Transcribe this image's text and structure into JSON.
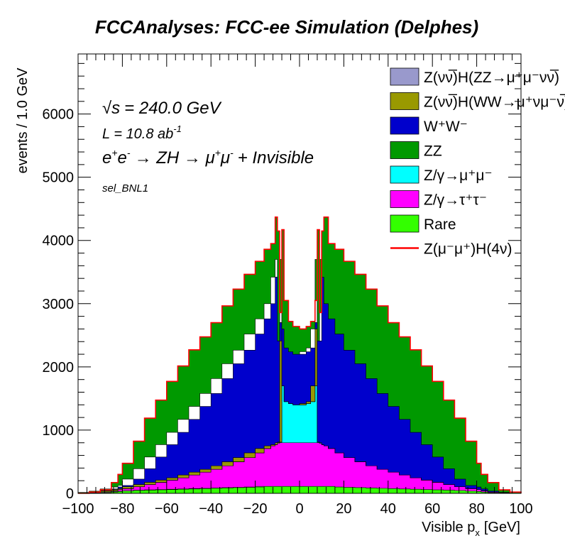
{
  "chart_data": {
    "type": "area",
    "title": "FCCAnalyses: FCC-ee Simulation (Delphes)",
    "xlabel": "Visible p",
    "xlabel_sub": "x",
    "xlabel_unit": "[GeV]",
    "ylabel": "events / 1.0 GeV",
    "xlim": [
      -100,
      100
    ],
    "ylim": [
      0,
      6950
    ],
    "log_scale": false,
    "stacked": true,
    "x_ticks": [
      "−100",
      "−80",
      "−60",
      "−40",
      "−20",
      "0",
      "20",
      "40",
      "60",
      "80",
      "100"
    ],
    "y_ticks": [
      "0",
      "1000",
      "2000",
      "3000",
      "4000",
      "5000",
      "6000"
    ],
    "annotations": {
      "sqrt_s": "= 240.0 GeV",
      "lumi_prefix": "L = 10.8 ab",
      "lumi_exp": "-1",
      "process_a": "e",
      "process_b": "e",
      "process_c": "→ ZH → μ",
      "process_d": "μ",
      "process_e": "+ Invisible",
      "selection": "sel_BNL1",
      "sqrt_sym": "√s"
    },
    "legend": [
      {
        "text": "Z(νν̅)H(ZZ→μ⁺μ⁻νν̅)",
        "color": "#9999cc",
        "kind": "box"
      },
      {
        "text": "Z(νν̅)H(WW→μ⁺νμ⁻ν̅)",
        "color": "#999900",
        "kind": "box"
      },
      {
        "text": "W⁺W⁻",
        "color": "#0000cc",
        "kind": "box"
      },
      {
        "text": "ZZ",
        "color": "#009900",
        "kind": "box"
      },
      {
        "text": "Z/γ→μ⁺μ⁻",
        "color": "#00ffff",
        "kind": "box"
      },
      {
        "text": "Z/γ→τ⁺τ⁻",
        "color": "#ff00ff",
        "kind": "box"
      },
      {
        "text": "Rare",
        "color": "#33ff00",
        "kind": "box"
      },
      {
        "text": "Z(μ⁻μ⁺)H(4ν)",
        "color": "#ff0000",
        "kind": "line"
      }
    ],
    "x": [
      -100,
      -95,
      -90,
      -85,
      -82,
      -80,
      -75,
      -70,
      -65,
      -60,
      -55,
      -50,
      -45,
      -40,
      -35,
      -30,
      -25,
      -20,
      -16,
      -13,
      -11,
      -10,
      -9,
      -8,
      -7,
      -5,
      -3,
      0,
      3,
      5,
      7,
      8,
      9,
      10,
      11,
      13,
      16,
      20,
      25,
      30,
      35,
      40,
      45,
      50,
      55,
      60,
      65,
      70,
      75,
      80,
      82,
      85,
      90,
      95,
      100
    ],
    "series": [
      {
        "name": "Rare",
        "color": "#33ff00",
        "values": [
          0,
          5,
          10,
          20,
          30,
          35,
          45,
          50,
          55,
          60,
          65,
          70,
          75,
          80,
          85,
          90,
          95,
          100,
          110,
          110,
          110,
          110,
          110,
          110,
          110,
          110,
          110,
          110,
          110,
          110,
          110,
          110,
          110,
          110,
          110,
          110,
          110,
          100,
          95,
          90,
          85,
          80,
          75,
          70,
          65,
          60,
          55,
          50,
          45,
          35,
          30,
          20,
          10,
          5,
          0
        ]
      },
      {
        "name": "Z/γ→τ⁺τ⁻",
        "color": "#ff00ff",
        "values": [
          0,
          5,
          10,
          20,
          30,
          40,
          60,
          90,
          120,
          150,
          180,
          220,
          260,
          300,
          350,
          410,
          470,
          540,
          600,
          640,
          660,
          680,
          690,
          690,
          690,
          690,
          690,
          690,
          690,
          690,
          690,
          690,
          690,
          680,
          660,
          640,
          600,
          540,
          470,
          410,
          350,
          300,
          260,
          220,
          180,
          150,
          120,
          90,
          60,
          40,
          30,
          20,
          10,
          5,
          0
        ]
      },
      {
        "name": "Z/γ→μ⁺μ⁻",
        "color": "#00ffff",
        "values": [
          0,
          0,
          0,
          0,
          0,
          0,
          0,
          0,
          0,
          0,
          0,
          0,
          0,
          0,
          0,
          0,
          0,
          0,
          0,
          0,
          0,
          10,
          10,
          1900,
          900,
          650,
          620,
          600,
          620,
          650,
          900,
          1900,
          10,
          10,
          0,
          0,
          0,
          0,
          0,
          0,
          0,
          0,
          0,
          0,
          0,
          0,
          0,
          0,
          0,
          0,
          0,
          0,
          0,
          0,
          0
        ]
      },
      {
        "name": "Z(νν̅)H(ZZ→μ⁺μ⁻νν̅)",
        "color": "#9999cc",
        "values": [
          0,
          0,
          0,
          0,
          0,
          0,
          0,
          0,
          0,
          0,
          0,
          0,
          0,
          0,
          0,
          0,
          0,
          0,
          0,
          0,
          0,
          0,
          0,
          0,
          0,
          0,
          0,
          0,
          0,
          0,
          0,
          0,
          0,
          0,
          0,
          0,
          0,
          0,
          0,
          0,
          0,
          0,
          0,
          0,
          0,
          0,
          0,
          0,
          0,
          0,
          0,
          0,
          0,
          0,
          0
        ]
      },
      {
        "name": "Z(νν̅)H(WW→μ⁺νμ⁻ν̅)",
        "color": "#999900",
        "values": [
          0,
          0,
          0,
          0,
          0,
          0,
          0,
          0,
          0,
          0,
          0,
          0,
          0,
          0,
          0,
          0,
          0,
          0,
          0,
          0,
          0,
          0,
          0,
          0,
          0,
          0,
          0,
          0,
          0,
          0,
          0,
          0,
          0,
          0,
          0,
          0,
          0,
          0,
          0,
          0,
          0,
          0,
          0,
          0,
          0,
          0,
          0,
          0,
          0,
          0,
          0,
          0,
          0,
          0,
          0
        ]
      },
      {
        "name": "W⁺W⁻",
        "color": "#0000cc",
        "values": [
          0,
          5,
          15,
          30,
          40,
          50,
          120,
          250,
          400,
          560,
          720,
          880,
          1040,
          1200,
          1380,
          1550,
          1700,
          1880,
          2050,
          2250,
          2650,
          2900,
          1600,
          1000,
          900,
          850,
          820,
          800,
          820,
          850,
          900,
          1000,
          1600,
          2900,
          2650,
          2250,
          2050,
          1880,
          1700,
          1550,
          1380,
          1200,
          1040,
          880,
          720,
          560,
          400,
          250,
          120,
          50,
          40,
          30,
          15,
          5,
          0
        ]
      },
      {
        "name": "ZZ",
        "color": "#009900",
        "values": [
          0,
          5,
          20,
          100,
          200,
          350,
          600,
          800,
          900,
          1000,
          1050,
          1100,
          1100,
          1120,
          1150,
          1180,
          1200,
          1150,
          1100,
          950,
          950,
          450,
          450,
          470,
          450,
          420,
          400,
          400,
          400,
          420,
          450,
          470,
          450,
          450,
          950,
          950,
          1100,
          1150,
          1200,
          1180,
          1150,
          1120,
          1100,
          1100,
          1050,
          1000,
          900,
          800,
          600,
          350,
          200,
          100,
          20,
          5,
          0
        ]
      }
    ]
  }
}
